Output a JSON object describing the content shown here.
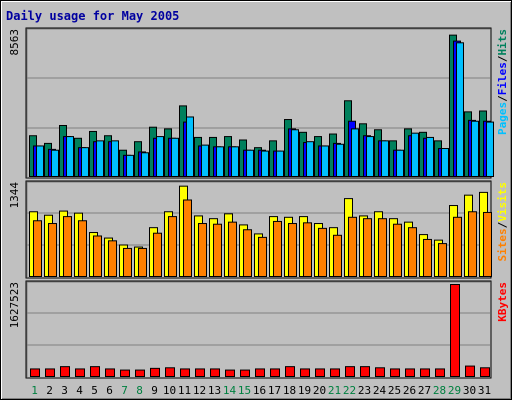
{
  "title": "Daily usage for May 2005",
  "colors": {
    "title": "#0000a0",
    "hits": "#00805c",
    "files": "#0000ff",
    "pages": "#00c0ff",
    "visits": "#ffff00",
    "sites": "#ff8000",
    "kbytes": "#ff0000",
    "weekday_label": "#000000",
    "weekend_label": "#008040",
    "separator": "#000000"
  },
  "legends": {
    "top": [
      {
        "text": "Pages",
        "color": "#00c0ff"
      },
      {
        "text": "/",
        "color": "#000000"
      },
      {
        "text": "Files",
        "color": "#0000ff"
      },
      {
        "text": "/",
        "color": "#000000"
      },
      {
        "text": "Hits",
        "color": "#00805c"
      }
    ],
    "middle": [
      {
        "text": "Sites",
        "color": "#ff8000"
      },
      {
        "text": "/",
        "color": "#000000"
      },
      {
        "text": "Visits",
        "color": "#ffff00"
      }
    ],
    "bottom": [
      {
        "text": "KBytes",
        "color": "#ff0000"
      }
    ]
  },
  "chart_data": {
    "type": "bar",
    "title": "Daily usage for May 2005",
    "categories": [
      "1",
      "2",
      "3",
      "4",
      "5",
      "6",
      "7",
      "8",
      "9",
      "10",
      "11",
      "12",
      "13",
      "14",
      "15",
      "16",
      "17",
      "18",
      "19",
      "20",
      "21",
      "22",
      "23",
      "24",
      "25",
      "26",
      "27",
      "28",
      "29",
      "30",
      "31"
    ],
    "weekend_days": [
      "1",
      "7",
      "8",
      "14",
      "15",
      "21",
      "22",
      "28",
      "29"
    ],
    "panels": [
      {
        "name": "top",
        "ymax_label": "8563",
        "ymax": 8563,
        "series": [
          {
            "name": "Hits",
            "values": [
              2450,
              2000,
              3050,
              2300,
              2700,
              2450,
              1600,
              2100,
              2950,
              2850,
              4200,
              2350,
              2350,
              2400,
              2200,
              1750,
              2150,
              3400,
              2650,
              2400,
              2550,
              4500,
              3150,
              2800,
              2150,
              2850,
              2650,
              2150,
              8350,
              3850,
              3900
            ]
          },
          {
            "name": "Files",
            "values": [
              1850,
              1650,
              2400,
              1750,
              2100,
              2100,
              1300,
              1500,
              2300,
              2300,
              3250,
              1850,
              1800,
              1800,
              1600,
              1600,
              1550,
              2850,
              2050,
              1850,
              2000,
              3300,
              2450,
              2150,
              1600,
              2450,
              2300,
              1700,
              8000,
              3350,
              3300
            ]
          },
          {
            "name": "Pages",
            "values": [
              1850,
              1600,
              2400,
              1750,
              2150,
              2150,
              1300,
              1450,
              2400,
              2300,
              3550,
              1900,
              1800,
              1800,
              1600,
              1550,
              1550,
              2800,
              2100,
              1850,
              1950,
              2850,
              2400,
              2150,
              1600,
              2600,
              2350,
              1700,
              7900,
              3300,
              3250
            ]
          }
        ]
      },
      {
        "name": "middle",
        "ymax_label": "1344",
        "ymax": 1344,
        "series": [
          {
            "name": "Visits",
            "values": [
              950,
              900,
              960,
              930,
              650,
              570,
              470,
              440,
              720,
              950,
              1320,
              890,
              850,
              920,
              760,
              630,
              880,
              870,
              880,
              780,
              720,
              1140,
              890,
              950,
              850,
              800,
              620,
              540,
              1040,
              1190,
              1230
            ]
          },
          {
            "name": "Sites",
            "values": [
              820,
              780,
              880,
              820,
              600,
              530,
              420,
              420,
              640,
              880,
              1120,
              780,
              770,
              800,
              690,
              580,
              810,
              780,
              790,
              710,
              610,
              870,
              850,
              850,
              770,
              720,
              550,
              490,
              870,
              950,
              940
            ]
          }
        ]
      },
      {
        "name": "bottom",
        "ymax_label": "1627523",
        "ymax": 1627523,
        "series": [
          {
            "name": "KBytes",
            "values": [
              150000,
              150000,
              190000,
              150000,
              190000,
              150000,
              130000,
              130000,
              160000,
              170000,
              150000,
              150000,
              150000,
              130000,
              130000,
              150000,
              150000,
              190000,
              150000,
              150000,
              150000,
              190000,
              190000,
              170000,
              150000,
              150000,
              150000,
              150000,
              1627523,
              200000,
              170000
            ]
          }
        ]
      }
    ]
  }
}
